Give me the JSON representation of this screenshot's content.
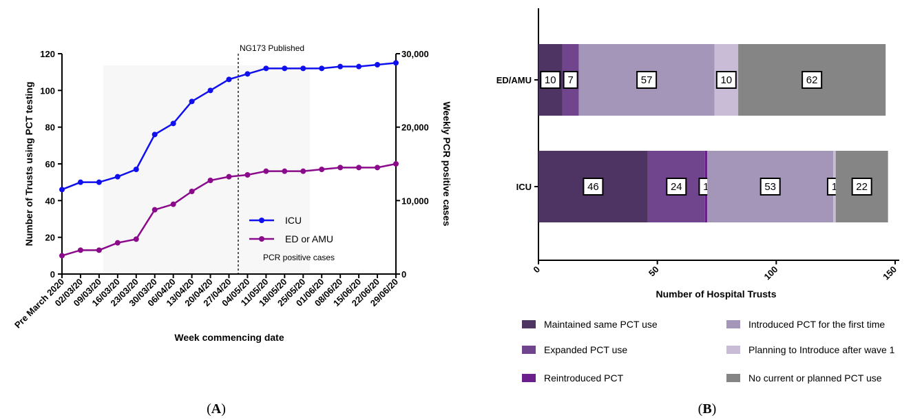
{
  "panel_labels": {
    "a": "A",
    "b": "B"
  },
  "chart_data": [
    {
      "type": "line",
      "title": "",
      "xlabel": "Week commencing date",
      "ylabel": "Number of Trusts using PCT testing",
      "y2label": "Weekly PCR positive cases",
      "ylim": [
        0,
        120
      ],
      "y2lim": [
        0,
        30000
      ],
      "yticks": [
        "0",
        "20",
        "40",
        "60",
        "80",
        "100",
        "120"
      ],
      "y2ticks": [
        "0",
        "10,000",
        "20,000",
        "30,000"
      ],
      "categories": [
        "Pre March 2020",
        "02/03/20",
        "09/03/20",
        "16/03/20",
        "23/03/20",
        "30/03/20",
        "06/04/20",
        "13/04/20",
        "20/04/20",
        "27/04/20",
        "04/05/20",
        "11/05/20",
        "18/05/20",
        "25/05/20",
        "01/06/20",
        "08/06/20",
        "15/06/20",
        "22/06/20",
        "29/06/20"
      ],
      "series": [
        {
          "name": "ICU",
          "color": "#1010ee",
          "values": [
            46,
            50,
            50,
            53,
            57,
            76,
            82,
            94,
            100,
            106,
            109,
            112,
            112,
            112,
            112,
            113,
            113,
            114,
            115
          ]
        },
        {
          "name": "ED or AMU",
          "color": "#8b0a8b",
          "values": [
            10,
            13,
            13,
            17,
            19,
            35,
            38,
            45,
            51,
            53,
            54,
            56,
            56,
            56,
            57,
            58,
            58,
            58,
            60
          ]
        }
      ],
      "background_series_label": "PCR positive cases",
      "annotation": {
        "text": "NG173 Published",
        "position": "between 27/04/20 and 04/05/20"
      },
      "legend_position": "center-right",
      "grid": false
    },
    {
      "type": "bar",
      "orientation": "horizontal",
      "stacked": true,
      "xlabel": "Number of Hospital Trusts",
      "xlim": [
        0,
        150
      ],
      "xticks": [
        "0",
        "50",
        "100",
        "150"
      ],
      "categories": [
        "ED/AMU",
        "ICU"
      ],
      "series": [
        {
          "name": "Maintained same PCT use",
          "color": "#4e3462",
          "values": [
            10,
            46
          ]
        },
        {
          "name": "Expanded PCT use",
          "color": "#70458d",
          "values": [
            7,
            24
          ]
        },
        {
          "name": "Reintroduced PCT",
          "color": "#6a1f8a",
          "values": [
            0,
            1
          ]
        },
        {
          "name": "Introduced PCT for the first time",
          "color": "#a496b8",
          "values": [
            57,
            53
          ]
        },
        {
          "name": "Planning to Introduce after wave 1",
          "color": "#c8bcd6",
          "values": [
            10,
            1
          ]
        },
        {
          "name": "No current or planned PCT use",
          "color": "#858585",
          "values": [
            62,
            22
          ]
        }
      ],
      "data_labels": [
        [
          "10",
          "7",
          "",
          "57",
          "10",
          "62"
        ],
        [
          "46",
          "24",
          "1",
          "53",
          "1",
          "22"
        ]
      ],
      "legend_position": "bottom",
      "grid": false
    }
  ]
}
